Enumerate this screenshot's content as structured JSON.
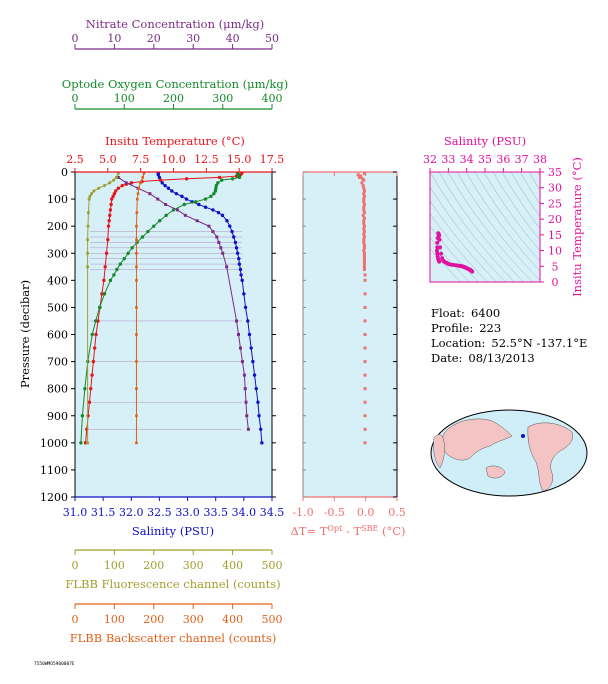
{
  "colors": {
    "nitrate": "#7b2b86",
    "oxygen": "#138a2a",
    "temperature": "#e8141a",
    "salinity": "#1010c8",
    "fluorescence": "#9f9f2f",
    "backscatter": "#e06018",
    "delta": "#f07070",
    "ts": "#e010a0",
    "axis_left": "#000000",
    "panel": "#d7f0f8"
  },
  "info": {
    "float_label": "Float:",
    "float_value": "6400",
    "profile_label": "Profile:",
    "profile_value": "223",
    "location_label": "Location:",
    "location_value": "52.5°N  -137.1°E",
    "date_label": "Date:",
    "date_value": "08/13/2013"
  },
  "footer_id": "7550WMO5900007E",
  "chart_data": [
    {
      "type": "line",
      "name": "main_profile",
      "ylabel": "Pressure (decibar)",
      "ylim": [
        0,
        1200
      ],
      "yticks": [
        0,
        100,
        200,
        300,
        400,
        500,
        600,
        700,
        800,
        900,
        1000,
        1100,
        1200
      ],
      "axes": {
        "nitrate": {
          "title": "Nitrate Concentration (μm/kg)",
          "range": [
            0,
            50
          ],
          "ticks": [
            0,
            10,
            20,
            30,
            40,
            50
          ]
        },
        "oxygen": {
          "title": "Optode Oxygen Concentration (μm/kg)",
          "range": [
            0,
            400
          ],
          "ticks": [
            0,
            100,
            200,
            300,
            400
          ]
        },
        "temperature": {
          "title": "Insitu Temperature (°C)",
          "range": [
            2.5,
            17.5
          ],
          "ticks": [
            "2.5",
            "5.0",
            "7.5",
            "10.0",
            "12.5",
            "15.0",
            "17.5"
          ]
        },
        "salinity": {
          "title": "Salinity (PSU)",
          "range": [
            31.0,
            34.5
          ],
          "ticks": [
            "31.0",
            "31.5",
            "32.0",
            "32.5",
            "33.0",
            "33.5",
            "34.0",
            "34.5"
          ]
        },
        "fluorescence": {
          "title": "FLBB Fluorescence channel (counts)",
          "range": [
            0,
            500
          ],
          "ticks": [
            0,
            100,
            200,
            300,
            400,
            500
          ]
        },
        "backscatter": {
          "title": "FLBB Backscatter channel (counts)",
          "range": [
            0,
            500
          ],
          "ticks": [
            0,
            100,
            200,
            300,
            400,
            500
          ]
        }
      },
      "series": [
        {
          "key": "salinity",
          "pressure": [
            5,
            10,
            20,
            30,
            40,
            50,
            60,
            70,
            80,
            90,
            100,
            110,
            120,
            130,
            140,
            150,
            160,
            180,
            200,
            220,
            240,
            260,
            280,
            300,
            320,
            340,
            360,
            380,
            400,
            450,
            500,
            550,
            600,
            650,
            700,
            750,
            800,
            850,
            900,
            950,
            1000
          ],
          "values": [
            32.48,
            32.48,
            32.5,
            32.52,
            32.55,
            32.6,
            32.66,
            32.72,
            32.8,
            32.9,
            32.98,
            33.08,
            33.2,
            33.32,
            33.45,
            33.55,
            33.62,
            33.7,
            33.75,
            33.79,
            33.82,
            33.85,
            33.87,
            33.89,
            33.91,
            33.92,
            33.94,
            33.95,
            33.97,
            34.0,
            34.03,
            34.07,
            34.1,
            34.13,
            34.16,
            34.19,
            34.22,
            34.25,
            34.27,
            34.3,
            34.32
          ]
        },
        {
          "key": "temperature",
          "pressure": [
            5,
            10,
            15,
            20,
            25,
            30,
            35,
            40,
            45,
            50,
            60,
            70,
            80,
            90,
            100,
            120,
            140,
            160,
            180,
            200,
            250,
            300,
            350,
            400,
            450,
            500,
            550,
            600,
            650,
            700,
            750,
            800,
            850,
            900,
            950,
            1000
          ],
          "values": [
            15.2,
            15.1,
            14.8,
            13.5,
            11.0,
            9.0,
            7.6,
            6.8,
            6.4,
            6.1,
            5.8,
            5.6,
            5.5,
            5.4,
            5.3,
            5.25,
            5.2,
            5.15,
            5.1,
            5.05,
            5.0,
            4.9,
            4.8,
            4.7,
            4.55,
            4.4,
            4.25,
            4.1,
            4.0,
            3.9,
            3.8,
            3.7,
            3.6,
            3.5,
            3.4,
            3.3
          ]
        },
        {
          "key": "oxygen",
          "pressure": [
            5,
            10,
            15,
            20,
            25,
            30,
            40,
            50,
            60,
            70,
            80,
            90,
            100,
            110,
            120,
            140,
            160,
            180,
            200,
            220,
            240,
            260,
            280,
            300,
            320,
            340,
            360,
            380,
            400,
            450,
            500,
            550,
            600,
            700,
            800,
            900,
            1000
          ],
          "values": [
            330,
            332,
            333,
            334,
            320,
            298,
            290,
            287,
            286,
            285,
            282,
            276,
            265,
            245,
            222,
            200,
            185,
            172,
            160,
            148,
            137,
            126,
            116,
            108,
            100,
            92,
            85,
            79,
            72,
            60,
            50,
            42,
            35,
            26,
            20,
            15,
            12
          ]
        },
        {
          "key": "nitrate",
          "pressure": [
            20,
            40,
            60,
            80,
            100,
            120,
            140,
            160,
            180,
            200,
            220,
            240,
            260,
            280,
            300,
            350,
            550,
            600,
            650,
            700,
            750,
            800,
            850,
            900,
            950
          ],
          "values": [
            11,
            13,
            16,
            19,
            21,
            23,
            26,
            28,
            31,
            34,
            35,
            36,
            36.5,
            37,
            37.5,
            38.5,
            41,
            41.5,
            42,
            42.5,
            43,
            43.2,
            43.4,
            43.6,
            44
          ]
        },
        {
          "key": "fluorescence",
          "pressure": [
            5,
            20,
            30,
            40,
            50,
            60,
            70,
            80,
            90,
            100,
            150,
            200,
            250,
            300,
            350,
            1000
          ],
          "values": [
            110,
            105,
            98,
            88,
            75,
            60,
            48,
            42,
            38,
            36,
            34,
            33,
            32,
            32,
            32,
            32
          ]
        },
        {
          "key": "backscatter",
          "pressure": [
            5,
            20,
            40,
            60,
            80,
            100,
            150,
            200,
            250,
            300,
            350,
            400,
            500,
            600,
            700,
            800,
            900,
            1000
          ],
          "values": [
            175,
            172,
            166,
            162,
            160,
            158,
            157,
            156,
            156,
            156,
            156,
            156,
            156,
            156,
            156,
            156,
            156,
            156
          ]
        }
      ],
      "horizontal_connectors": [
        220,
        240,
        260,
        280,
        300,
        320,
        340,
        360,
        550,
        700,
        850,
        950
      ]
    },
    {
      "type": "scatter",
      "name": "delta_t",
      "xlabel": "ΔT= T^Opt - T^SBE (°C)",
      "xlim": [
        -1.0,
        0.5
      ],
      "xticks": [
        "-1.0",
        "-0.5",
        "0.0",
        "0.5"
      ],
      "ylim": [
        0,
        1200
      ],
      "pressure": [
        5,
        10,
        15,
        20,
        25,
        30,
        40,
        50,
        60,
        70,
        80,
        90,
        100,
        110,
        120,
        130,
        140,
        150,
        160,
        170,
        180,
        190,
        200,
        210,
        220,
        230,
        240,
        250,
        260,
        270,
        280,
        290,
        300,
        310,
        320,
        330,
        340,
        350,
        360,
        380,
        400,
        450,
        500,
        550,
        600,
        650,
        700,
        750,
        800,
        850,
        900,
        950,
        1000
      ],
      "values": [
        -0.02,
        -0.12,
        -0.08,
        -0.1,
        -0.05,
        -0.03,
        -0.06,
        -0.04,
        -0.03,
        -0.02,
        -0.03,
        -0.02,
        -0.03,
        -0.03,
        -0.02,
        -0.03,
        -0.03,
        -0.02,
        -0.04,
        -0.02,
        -0.03,
        -0.03,
        -0.02,
        -0.03,
        -0.02,
        -0.03,
        -0.02,
        -0.03,
        -0.03,
        -0.02,
        -0.02,
        -0.03,
        -0.02,
        -0.02,
        -0.02,
        -0.02,
        -0.02,
        -0.02,
        -0.02,
        -0.01,
        -0.01,
        -0.01,
        -0.01,
        -0.01,
        -0.01,
        -0.01,
        -0.01,
        -0.01,
        -0.01,
        -0.01,
        -0.01,
        -0.01,
        -0.01
      ]
    },
    {
      "type": "scatter",
      "name": "ts_diagram",
      "xlabel": "Salinity (PSU)",
      "ylabel": "Insitu Temperature (°C)",
      "xlim": [
        32,
        38
      ],
      "xticks": [
        32,
        33,
        34,
        35,
        36,
        37,
        38
      ],
      "ylim": [
        0,
        35
      ],
      "yticks": [
        0,
        5,
        10,
        15,
        20,
        25,
        30,
        35
      ],
      "salinity": [
        32.48,
        32.5,
        32.52,
        32.55,
        32.6,
        32.66,
        32.72,
        32.8,
        32.9,
        32.98,
        33.08,
        33.2,
        33.32,
        33.45,
        33.55,
        33.62,
        33.7,
        33.75,
        33.8,
        33.85,
        33.9,
        33.95,
        34.0,
        34.05,
        34.1,
        34.15,
        34.2,
        34.25,
        34.3,
        32.45,
        32.42,
        32.4,
        32.4,
        32.38,
        32.4,
        32.42,
        32.45,
        32.5
      ],
      "temperature": [
        15.2,
        14.8,
        13.5,
        11.0,
        9.0,
        7.6,
        6.8,
        6.4,
        6.1,
        5.8,
        5.6,
        5.5,
        5.4,
        5.3,
        5.2,
        5.1,
        5.05,
        5.0,
        4.9,
        4.8,
        4.7,
        4.55,
        4.4,
        4.25,
        4.1,
        4.0,
        3.8,
        3.6,
        3.3,
        15.5,
        14.0,
        12.5,
        11.0,
        10.0,
        9.0,
        8.0,
        7.2,
        6.5
      ]
    }
  ]
}
